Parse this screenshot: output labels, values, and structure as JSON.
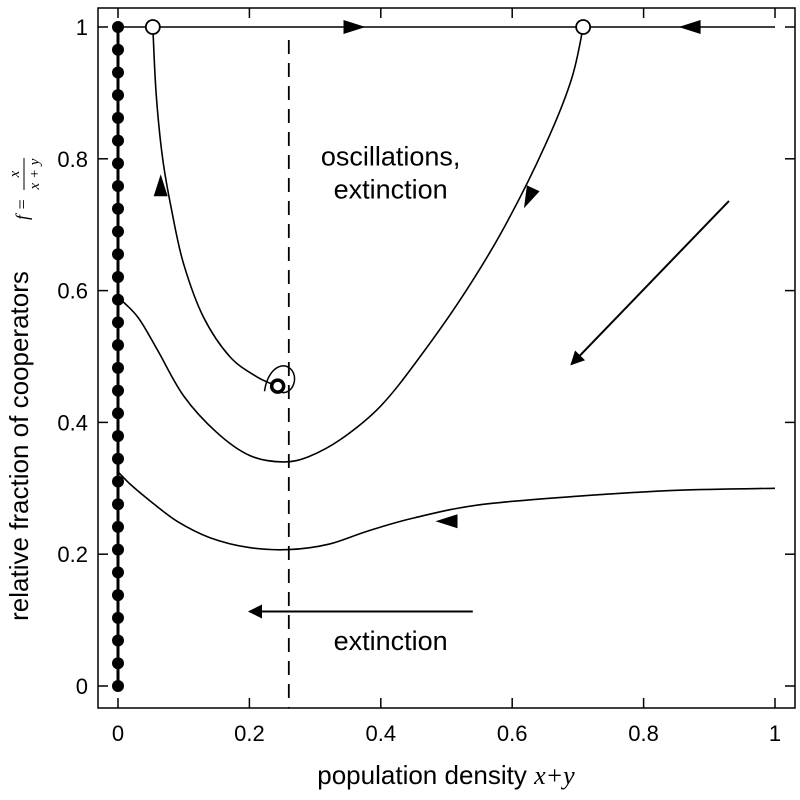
{
  "chart_data": {
    "type": "phase-portrait",
    "xlabel": "population density x+y",
    "xlabel_parts": [
      "population density ",
      "x+y"
    ],
    "ylabel": "relative fraction of cooperators",
    "ylabel_formula": {
      "prefix": "f =",
      "numerator": "x",
      "denominator": "x + y"
    },
    "xlim": [
      0,
      1
    ],
    "ylim": [
      0,
      1
    ],
    "x_ticks": [
      "0",
      "0.2",
      "0.4",
      "0.6",
      "0.8",
      "1"
    ],
    "y_ticks": [
      "0",
      "0.2",
      "0.4",
      "0.6",
      "0.8",
      "1"
    ],
    "x_tick_values": [
      0,
      0.2,
      0.4,
      0.6,
      0.8,
      1
    ],
    "y_tick_values": [
      0,
      0.2,
      0.4,
      0.6,
      0.8,
      1
    ],
    "annotations": [
      {
        "id": "osc-line1",
        "text": "oscillations,",
        "x": 0.415,
        "y": 0.79
      },
      {
        "id": "osc-line2",
        "text": "extinction",
        "x": 0.415,
        "y": 0.74
      },
      {
        "id": "ext",
        "text": "extinction",
        "x": 0.415,
        "y": 0.055
      }
    ],
    "nullcline_x": 0.26,
    "fixed_points": [
      {
        "x": 0.053,
        "y": 1.0,
        "kind": "unstable"
      },
      {
        "x": 0.708,
        "y": 1.0,
        "kind": "unstable"
      },
      {
        "x": 0.243,
        "y": 0.455,
        "kind": "focus"
      }
    ],
    "trajectories": [
      {
        "name": "top-edge",
        "points": [
          [
            0,
            1
          ],
          [
            1,
            1
          ]
        ]
      },
      {
        "name": "from-unstable-left",
        "points": [
          [
            0.053,
            1.0
          ],
          [
            0.058,
            0.9
          ],
          [
            0.068,
            0.8
          ],
          [
            0.082,
            0.72
          ],
          [
            0.1,
            0.64
          ],
          [
            0.13,
            0.56
          ],
          [
            0.17,
            0.5
          ],
          [
            0.21,
            0.47
          ],
          [
            0.235,
            0.458
          ]
        ]
      },
      {
        "name": "from-unstable-right",
        "points": [
          [
            0.708,
            1.0
          ],
          [
            0.69,
            0.92
          ],
          [
            0.65,
            0.82
          ],
          [
            0.59,
            0.7
          ],
          [
            0.53,
            0.6
          ],
          [
            0.46,
            0.5
          ],
          [
            0.4,
            0.425
          ],
          [
            0.34,
            0.375
          ],
          [
            0.29,
            0.348
          ],
          [
            0.25,
            0.34
          ],
          [
            0.2,
            0.35
          ],
          [
            0.15,
            0.385
          ],
          [
            0.1,
            0.44
          ],
          [
            0.06,
            0.51
          ],
          [
            0.03,
            0.56
          ],
          [
            0.0,
            0.59
          ]
        ]
      },
      {
        "name": "lower",
        "points": [
          [
            1.0,
            0.3
          ],
          [
            0.85,
            0.297
          ],
          [
            0.7,
            0.288
          ],
          [
            0.55,
            0.275
          ],
          [
            0.45,
            0.255
          ],
          [
            0.38,
            0.235
          ],
          [
            0.32,
            0.215
          ],
          [
            0.26,
            0.207
          ],
          [
            0.2,
            0.21
          ],
          [
            0.14,
            0.225
          ],
          [
            0.09,
            0.25
          ],
          [
            0.05,
            0.28
          ],
          [
            0.02,
            0.305
          ],
          [
            0.0,
            0.325
          ]
        ]
      }
    ],
    "spiral": {
      "center": [
        0.243,
        0.455
      ],
      "rx0": 0.1,
      "ry0": 0.13,
      "decay": 0.45,
      "turns": 5
    },
    "direction_arrows": [
      {
        "from": [
          0.54,
          0.113
        ],
        "to": [
          0.2,
          0.113
        ]
      },
      {
        "from": [
          0.93,
          0.736
        ],
        "to": [
          0.69,
          0.488
        ]
      }
    ],
    "flow_arrows": [
      {
        "at": [
          0.36,
          1.0
        ],
        "dir": "right"
      },
      {
        "at": [
          0.87,
          1.0
        ],
        "dir": "left"
      },
      {
        "at": [
          0.065,
          0.76
        ],
        "dir": "up"
      },
      {
        "at": [
          0.625,
          0.74
        ],
        "dir": "down-left"
      },
      {
        "at": [
          0.5,
          0.25
        ],
        "dir": "left"
      }
    ],
    "x0_fixed_line": {
      "x": 0,
      "y_from": 0,
      "y_to": 1,
      "marker_count": 30
    }
  }
}
